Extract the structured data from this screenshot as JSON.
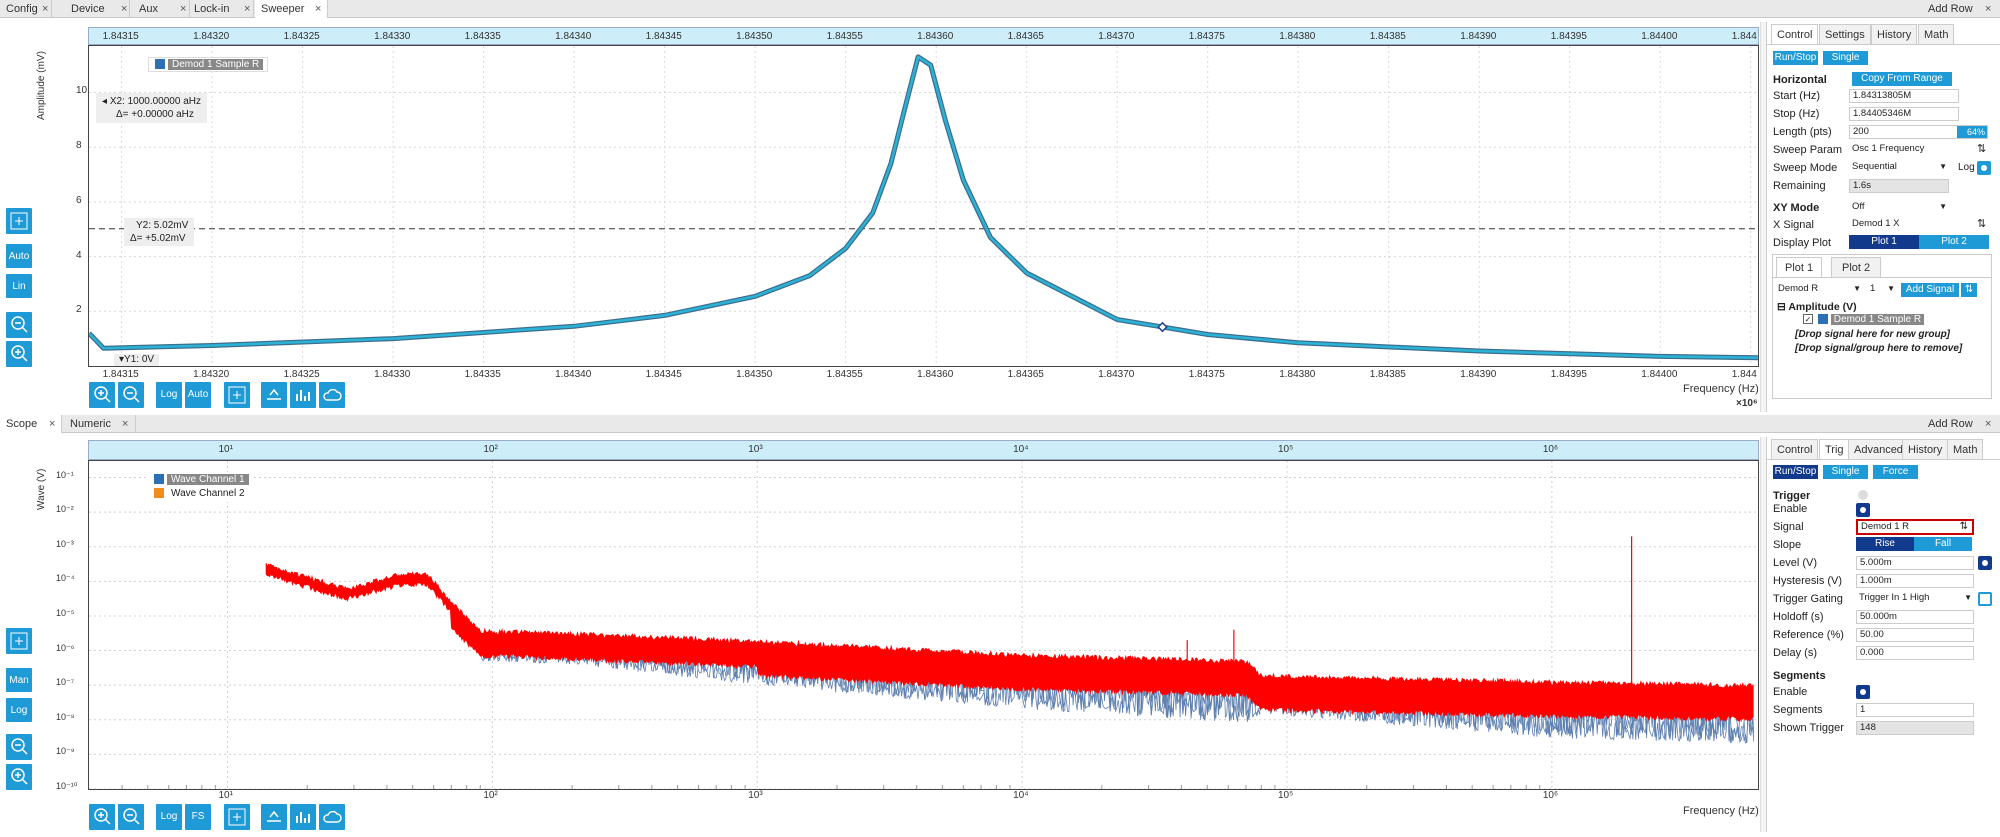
{
  "top_tabs": [
    {
      "label": "Config"
    },
    {
      "label": "Device"
    },
    {
      "label": "Aux"
    },
    {
      "label": "Lock-in"
    },
    {
      "label": "Sweeper"
    }
  ],
  "add_row": "Add Row",
  "sweeper": {
    "ylabel": "Amplitude (mV)",
    "xlabel": "Frequency (Hz)",
    "x_exp": "×10⁶",
    "x_ticks": [
      "1.84315",
      "1.84320",
      "1.84325",
      "1.84330",
      "1.84335",
      "1.84340",
      "1.84345",
      "1.84350",
      "1.84355",
      "1.84360",
      "1.84365",
      "1.84370",
      "1.84375",
      "1.84380",
      "1.84385",
      "1.84390",
      "1.84395",
      "1.84400",
      "1.844"
    ],
    "y_ticks": [
      "10",
      "8",
      "6",
      "4",
      "2"
    ],
    "legend": "Demod 1 Sample R",
    "cursor_x2": "X2: 1000.00000 aHz",
    "cursor_dx": "Δ= +0.00000 aHz",
    "cursor_y2": "Y2: 5.02mV",
    "cursor_dy": "Δ= +5.02mV",
    "cursor_y1": "Y1: 0V",
    "side_buttons": {
      "auto": "Auto",
      "lin": "Lin"
    },
    "bottom_buttons": {
      "log": "Log",
      "auto": "Auto"
    },
    "trace_color": "#2bb3d6",
    "chart_data": {
      "type": "line",
      "title": "",
      "xlabel": "Frequency (Hz)",
      "ylabel": "Amplitude (mV)",
      "xlim": [
        1843132,
        1844054
      ],
      "ylim": [
        0,
        11.7
      ],
      "series": [
        {
          "name": "Demod 1 Sample R",
          "x": [
            1843132,
            1843140,
            1843200,
            1843300,
            1843400,
            1843450,
            1843500,
            1843530,
            1843550,
            1843565,
            1843575,
            1843583,
            1843590,
            1843597,
            1843605,
            1843615,
            1843630,
            1843650,
            1843700,
            1843750,
            1843800,
            1843900,
            1844000,
            1844054
          ],
          "y": [
            1.2,
            0.65,
            0.75,
            1.0,
            1.45,
            1.85,
            2.55,
            3.3,
            4.3,
            5.6,
            7.4,
            9.5,
            11.3,
            11.0,
            9.0,
            6.8,
            4.7,
            3.4,
            1.7,
            1.15,
            0.85,
            0.55,
            0.35,
            0.3
          ]
        }
      ]
    },
    "panel": {
      "tabs": [
        "Control",
        "Settings",
        "History",
        "Math"
      ],
      "run_stop": "Run/Stop",
      "single": "Single",
      "horizontal": "Horizontal",
      "copy_from_range": "Copy From Range",
      "start_label": "Start (Hz)",
      "start_value": "1.84313805M",
      "stop_label": "Stop (Hz)",
      "stop_value": "1.84405346M",
      "length_label": "Length (pts)",
      "length_value": "200",
      "length_pct": "64%",
      "length_progress": 0.64,
      "sweep_param_label": "Sweep Param",
      "sweep_param_value": "Osc 1 Frequency",
      "sweep_mode_label": "Sweep Mode",
      "sweep_mode_value": "Sequential",
      "log_label": "Log",
      "remaining_label": "Remaining",
      "remaining_value": "1.6s",
      "xy_mode_label": "XY Mode",
      "xy_mode_value": "Off",
      "x_signal_label": "X Signal",
      "x_signal_value": "Demod 1 X",
      "display_plot_label": "Display Plot",
      "plot1": "Plot 1",
      "plot2": "Plot 2",
      "subtabs": [
        "Plot 1",
        "Plot 2"
      ],
      "signal_select": "Demod R",
      "channel_select": "1",
      "add_signal": "Add Signal",
      "group_label": "Amplitude (V)",
      "signal_item": "Demod 1 Sample R",
      "drop_new": "[Drop signal here for new group]",
      "drop_remove": "[Drop signal/group here to remove]"
    }
  },
  "lower_tabs": [
    {
      "label": "Scope"
    },
    {
      "label": "Numeric"
    }
  ],
  "scope": {
    "ylabel": "Wave (V)",
    "xlabel": "Frequency (Hz)",
    "x_ticks": [
      "10¹",
      "10²",
      "10³",
      "10⁴",
      "10⁵",
      "10⁶"
    ],
    "y_ticks": [
      "10⁻¹",
      "10⁻²",
      "10⁻³",
      "10⁻⁴",
      "10⁻⁵",
      "10⁻⁶",
      "10⁻⁷",
      "10⁻⁸",
      "10⁻⁹",
      "10⁻¹⁰"
    ],
    "legend": [
      {
        "name": "Wave Channel 1",
        "color": "#2c6fb5"
      },
      {
        "name": "Wave Channel 2",
        "color": "#f28a1e"
      }
    ],
    "side_buttons": {
      "man": "Man",
      "log": "Log"
    },
    "bottom_buttons": {
      "log": "Log",
      "fs": "FS"
    },
    "colors": {
      "ch1": "#5d7fb0",
      "ch2": "#ff0000"
    },
    "chart_data": {
      "type": "line",
      "title": "",
      "xlabel": "Frequency (Hz)",
      "ylabel": "Wave (V)",
      "x_scale": "log",
      "y_scale": "log",
      "xlim": [
        3,
        6000000
      ],
      "ylim": [
        1e-10,
        0.3
      ],
      "series": [
        {
          "name": "Wave Channel 2",
          "x": [
            14,
            28,
            45,
            57,
            70,
            90,
            200,
            1000,
            10000,
            70000,
            80000,
            1000000,
            6000000
          ],
          "y": [
            0.00025,
            5e-05,
            0.00013,
            0.00013,
            2e-05,
            3e-06,
            2.5e-06,
            1.5e-06,
            6e-07,
            4e-07,
            1.5e-07,
            1e-07,
            8e-08
          ]
        },
        {
          "name": "Wave Channel 1",
          "x": [
            14,
            28,
            45,
            57,
            70,
            90,
            200,
            1000,
            10000,
            70000,
            80000,
            1000000,
            6000000
          ],
          "y": [
            0.0002,
            3e-05,
            0.0001,
            0.0001,
            1.5e-05,
            5e-07,
            4e-07,
            1e-07,
            2e-08,
            8e-09,
            1.5e-08,
            3e-09,
            2e-09
          ]
        }
      ]
    },
    "panel": {
      "tabs": [
        "Control",
        "Trig",
        "Advanced",
        "History",
        "Math"
      ],
      "run_stop": "Run/Stop",
      "single": "Single",
      "force": "Force",
      "trigger": "Trigger",
      "enable": "Enable",
      "signal_label": "Signal",
      "signal_value": "Demod 1 R",
      "slope_label": "Slope",
      "rise": "Rise",
      "fall": "Fall",
      "level_label": "Level (V)",
      "level_value": "5.000m",
      "hysteresis_label": "Hysteresis (V)",
      "hysteresis_value": "1.000m",
      "gating_label": "Trigger Gating",
      "gating_value": "Trigger In 1 High",
      "holdoff_label": "Holdoff (s)",
      "holdoff_value": "50.000m",
      "reference_label": "Reference (%)",
      "reference_value": "50.00",
      "delay_label": "Delay (s)",
      "delay_value": "0.000",
      "segments_title": "Segments",
      "seg_enable": "Enable",
      "segments_label": "Segments",
      "segments_value": "1",
      "shown_trigger_label": "Shown Trigger",
      "shown_trigger_value": "148"
    }
  }
}
